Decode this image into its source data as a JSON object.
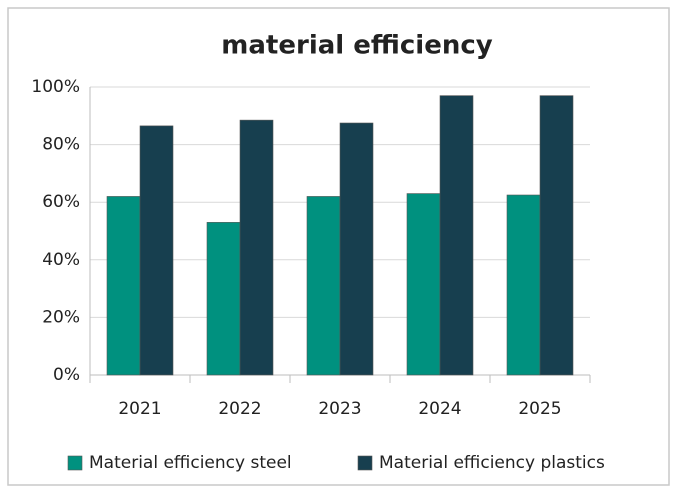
{
  "chart_data": {
    "type": "bar",
    "title": "material efficiency",
    "categories": [
      "2021",
      "2022",
      "2023",
      "2024",
      "2025"
    ],
    "series": [
      {
        "name": "Material efficiency steel",
        "color": "#00917f",
        "values": [
          62,
          53,
          62,
          63,
          62.5
        ]
      },
      {
        "name": "Material efficiency plastics",
        "color": "#173f4f",
        "values": [
          86.5,
          88.5,
          87.5,
          97,
          97
        ]
      }
    ],
    "ylim": [
      0,
      100
    ],
    "yticks": [
      {
        "value": 0,
        "label": "0%"
      },
      {
        "value": 20,
        "label": "20%"
      },
      {
        "value": 40,
        "label": "40%"
      },
      {
        "value": 60,
        "label": "60%"
      },
      {
        "value": 80,
        "label": "80%"
      },
      {
        "value": 100,
        "label": "100%"
      }
    ],
    "grid": true,
    "legend": "bottom"
  }
}
